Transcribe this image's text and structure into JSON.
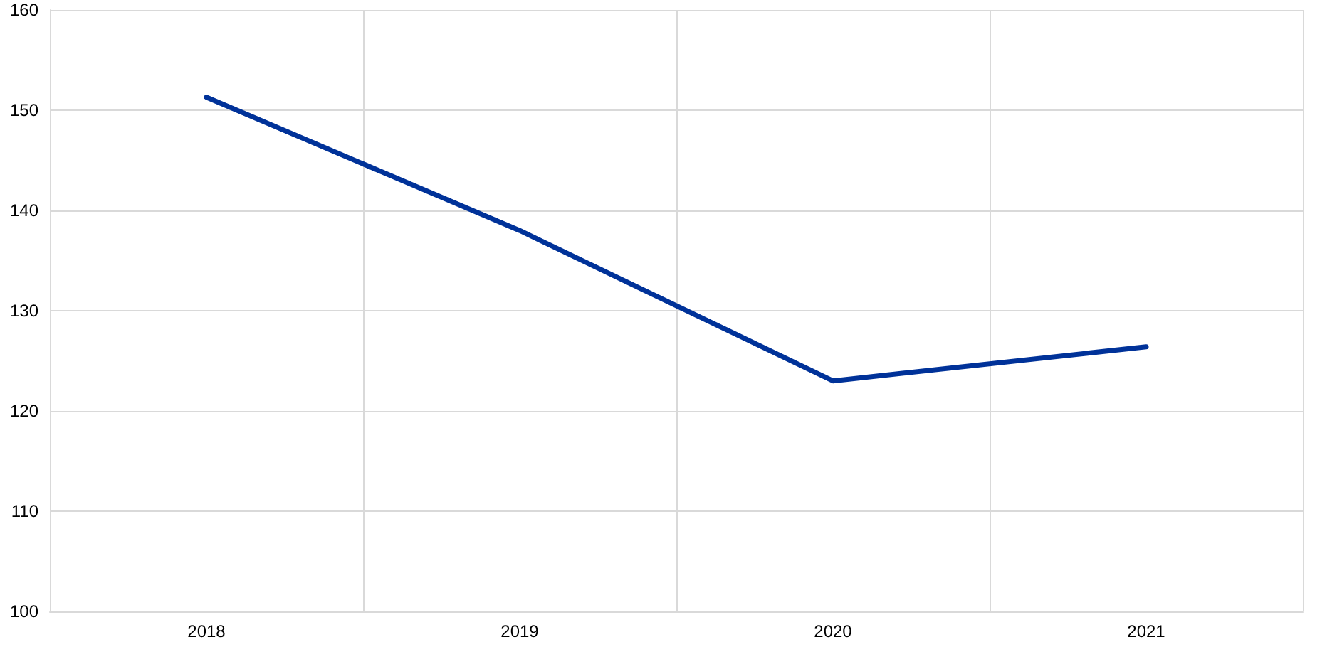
{
  "chart_data": {
    "type": "line",
    "categories": [
      "2018",
      "2019",
      "2020",
      "2021"
    ],
    "series": [
      {
        "color": "#003299",
        "values": [
          151.3,
          138.0,
          123.0,
          126.4
        ]
      }
    ],
    "ylim": [
      100,
      160
    ],
    "yticks": [
      100,
      110,
      120,
      130,
      140,
      150,
      160
    ],
    "grid": true,
    "marker": "none",
    "line_style": "solid"
  }
}
